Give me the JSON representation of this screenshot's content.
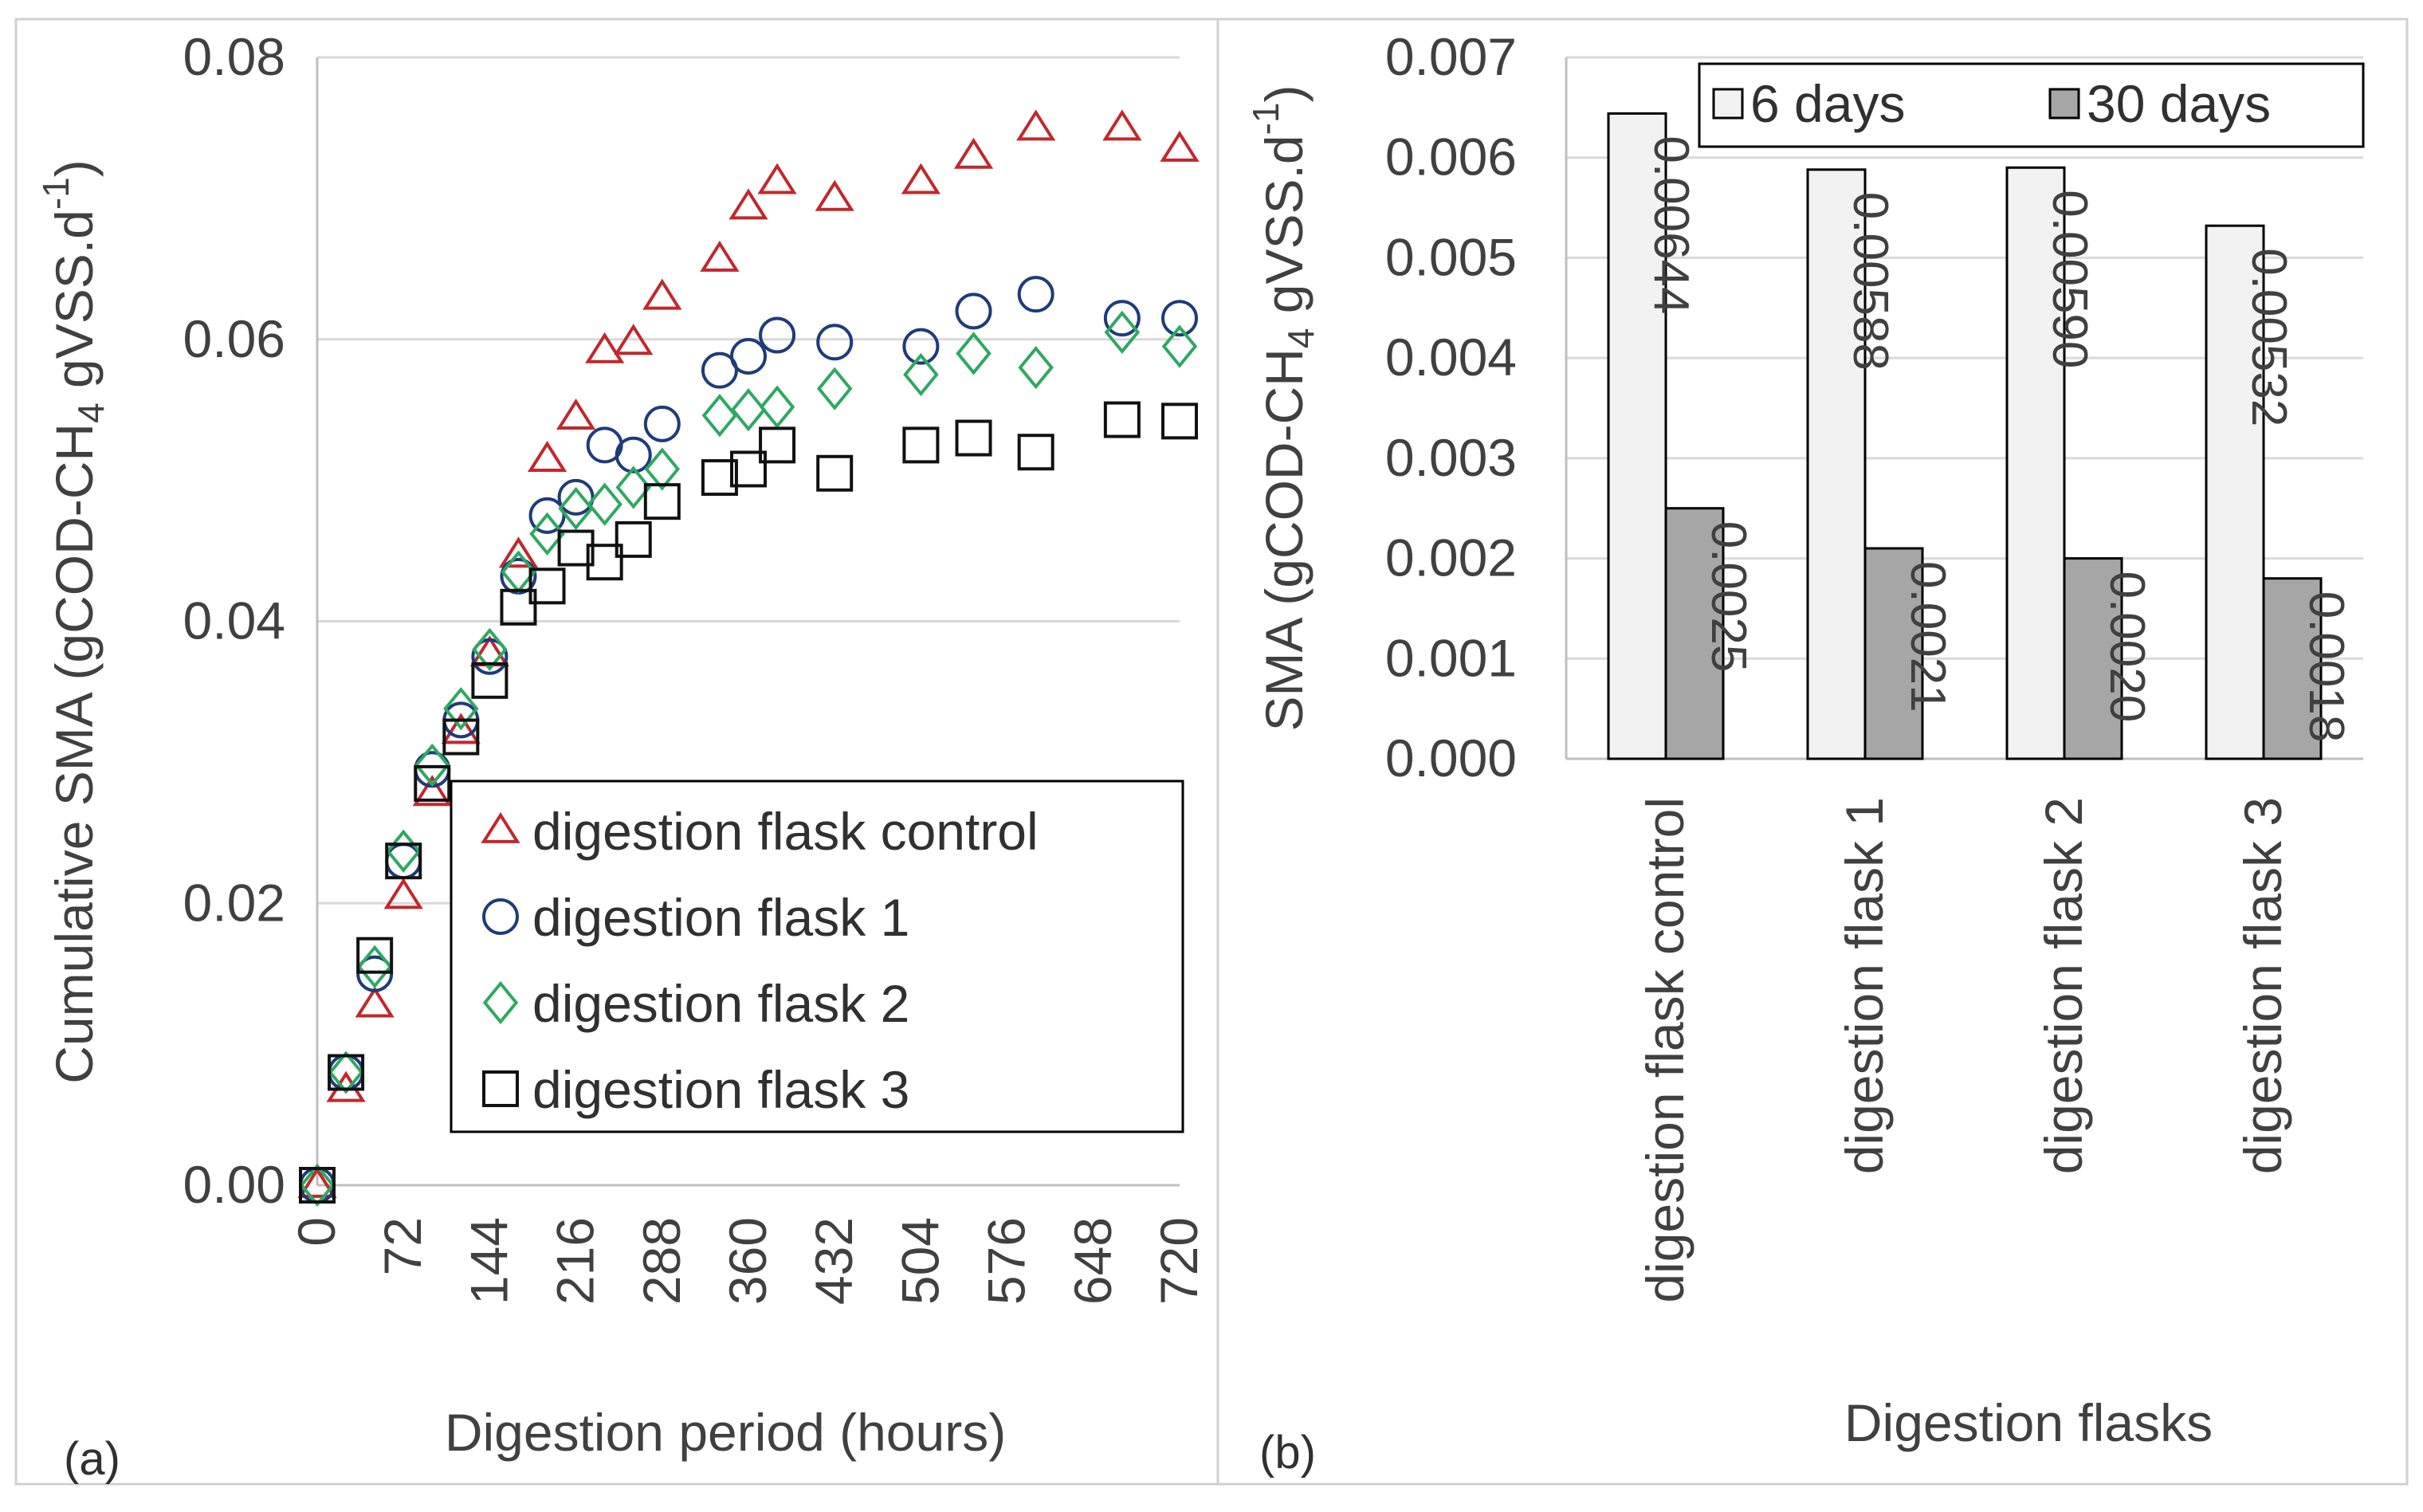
{
  "figure": {
    "panel_labels": [
      "(a)",
      "(b)"
    ]
  },
  "chart_data": [
    {
      "type": "scatter",
      "panel": "(a)",
      "title": "",
      "xlabel": "Digestion period (hours)",
      "ylabel_main": "Cumulative SMA (gCOD-CH",
      "ylabel_sub": "4",
      "ylabel_mid": " gVSS.d",
      "ylabel_sup": "-1",
      "ylabel_end": ")",
      "xlim": [
        0,
        720
      ],
      "ylim": [
        0,
        0.08
      ],
      "xticks": [
        0,
        72,
        144,
        216,
        288,
        360,
        432,
        504,
        576,
        648,
        720
      ],
      "yticks": [
        0,
        0.02,
        0.04,
        0.06,
        0.08
      ],
      "ytick_labels": [
        "0.00",
        "0.02",
        "0.04",
        "0.06",
        "0.08"
      ],
      "grid": "horizontal",
      "legend_position": "lower-right",
      "series": [
        {
          "name": "digestion flask control",
          "marker": "triangle",
          "color": "#c0282d",
          "points": [
            [
              0,
              0
            ],
            [
              24,
              0.0068
            ],
            [
              48,
              0.0128
            ],
            [
              72,
              0.0205
            ],
            [
              96,
              0.0278
            ],
            [
              120,
              0.0322
            ],
            [
              144,
              0.0377
            ],
            [
              168,
              0.0447
            ],
            [
              192,
              0.0515
            ],
            [
              216,
              0.0545
            ],
            [
              240,
              0.0592
            ],
            [
              264,
              0.0598
            ],
            [
              288,
              0.063
            ],
            [
              336,
              0.0657
            ],
            [
              360,
              0.0694
            ],
            [
              384,
              0.0712
            ],
            [
              432,
              0.07
            ],
            [
              504,
              0.0712
            ],
            [
              548,
              0.073
            ],
            [
              600,
              0.075
            ],
            [
              672,
              0.075
            ],
            [
              720,
              0.0735
            ]
          ]
        },
        {
          "name": "digestion flask 1",
          "marker": "circle",
          "color": "#1f3b7a",
          "points": [
            [
              0,
              0
            ],
            [
              24,
              0.008
            ],
            [
              48,
              0.015
            ],
            [
              72,
              0.023
            ],
            [
              96,
              0.0295
            ],
            [
              120,
              0.033
            ],
            [
              144,
              0.0375
            ],
            [
              168,
              0.0432
            ],
            [
              192,
              0.0475
            ],
            [
              216,
              0.0488
            ],
            [
              240,
              0.0525
            ],
            [
              264,
              0.0518
            ],
            [
              288,
              0.054
            ],
            [
              336,
              0.0578
            ],
            [
              360,
              0.0588
            ],
            [
              384,
              0.0603
            ],
            [
              432,
              0.0598
            ],
            [
              504,
              0.0595
            ],
            [
              548,
              0.062
            ],
            [
              600,
              0.0632
            ],
            [
              672,
              0.0615
            ],
            [
              720,
              0.0615
            ]
          ]
        },
        {
          "name": "digestion flask 2",
          "marker": "diamond",
          "color": "#2ea862",
          "points": [
            [
              0,
              0
            ],
            [
              24,
              0.008
            ],
            [
              48,
              0.0155
            ],
            [
              72,
              0.0237
            ],
            [
              96,
              0.0298
            ],
            [
              120,
              0.0338
            ],
            [
              144,
              0.038
            ],
            [
              168,
              0.0435
            ],
            [
              192,
              0.0462
            ],
            [
              216,
              0.048
            ],
            [
              240,
              0.0483
            ],
            [
              264,
              0.0495
            ],
            [
              288,
              0.0508
            ],
            [
              336,
              0.0546
            ],
            [
              360,
              0.055
            ],
            [
              384,
              0.0552
            ],
            [
              432,
              0.0565
            ],
            [
              504,
              0.0575
            ],
            [
              548,
              0.059
            ],
            [
              600,
              0.058
            ],
            [
              672,
              0.0605
            ],
            [
              720,
              0.0595
            ]
          ]
        },
        {
          "name": "digestion flask 3",
          "marker": "square",
          "color": "#111111",
          "points": [
            [
              0,
              0
            ],
            [
              24,
              0.008
            ],
            [
              48,
              0.0163
            ],
            [
              72,
              0.023
            ],
            [
              96,
              0.0285
            ],
            [
              120,
              0.0318
            ],
            [
              144,
              0.0358
            ],
            [
              168,
              0.041
            ],
            [
              192,
              0.0425
            ],
            [
              216,
              0.0452
            ],
            [
              240,
              0.0442
            ],
            [
              264,
              0.0458
            ],
            [
              288,
              0.0485
            ],
            [
              336,
              0.0502
            ],
            [
              360,
              0.0508
            ],
            [
              384,
              0.0525
            ],
            [
              432,
              0.0505
            ],
            [
              504,
              0.0525
            ],
            [
              548,
              0.053
            ],
            [
              600,
              0.052
            ],
            [
              672,
              0.0543
            ],
            [
              720,
              0.0542
            ]
          ]
        }
      ]
    },
    {
      "type": "bar",
      "panel": "(b)",
      "title": "",
      "xlabel": "Digestion flasks",
      "ylabel_main": "SMA (gCOD-CH",
      "ylabel_sub": "4",
      "ylabel_mid": " gVSS.d",
      "ylabel_sup": "-1",
      "ylabel_end": ")",
      "ylim": [
        0,
        0.007
      ],
      "yticks": [
        0,
        0.001,
        0.002,
        0.003,
        0.004,
        0.005,
        0.006,
        0.007
      ],
      "ytick_labels": [
        "0.000",
        "0.001",
        "0.002",
        "0.003",
        "0.004",
        "0.005",
        "0.006",
        "0.007"
      ],
      "grid": "horizontal",
      "legend_position": "top-right",
      "categories": [
        "digestion flask control",
        "digestion flask 1",
        "digestion flask 2",
        "digestion flask 3"
      ],
      "series": [
        {
          "name": "6 days",
          "color": "#f2f2f2",
          "values": [
            0.00644,
            0.00588,
            0.0059,
            0.00532
          ],
          "labels": [
            "0.00644",
            "0.00588",
            "0.00590",
            "0.00532"
          ]
        },
        {
          "name": "30 days",
          "color": "#a6a6a6",
          "values": [
            0.0025,
            0.0021,
            0.002,
            0.0018
          ],
          "labels": [
            "0.0025",
            "0.0021",
            "0.0020",
            "0.0018"
          ]
        }
      ]
    }
  ]
}
